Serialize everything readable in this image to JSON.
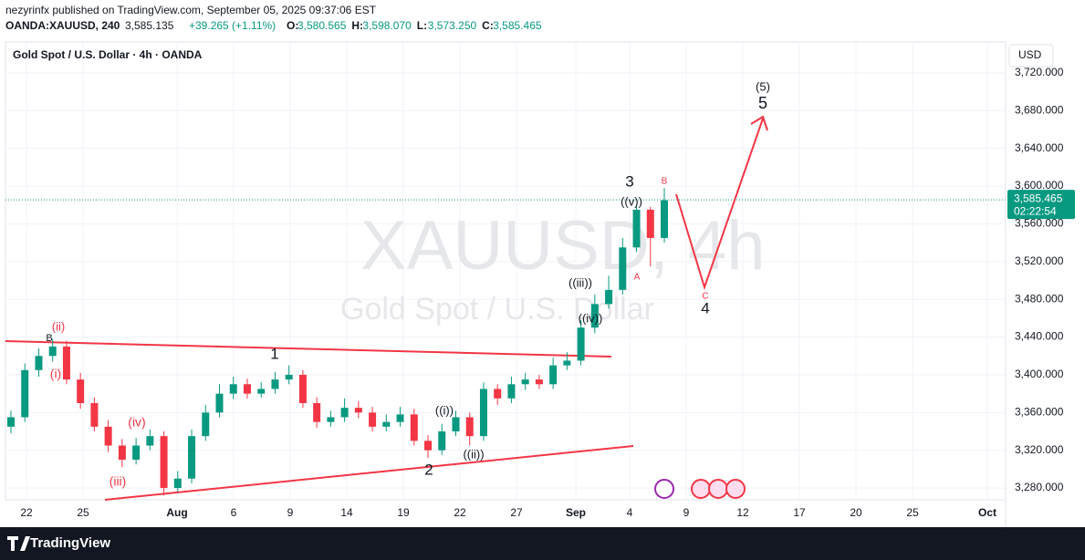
{
  "header": {
    "published": "nezyrinfx published on TradingView.com, September 05, 2025 09:37:06 EST",
    "symbol": "OANDA:XAUUSD, 240",
    "price": "3,585.135",
    "change": "+39.265 (+1.11%)",
    "ohlc": [
      {
        "label": "O:",
        "value": "3,580.565"
      },
      {
        "label": "H:",
        "value": "3,598.070"
      },
      {
        "label": "L:",
        "value": "3,573.250"
      },
      {
        "label": "C:",
        "value": "3,585.465"
      }
    ]
  },
  "chart_data": {
    "type": "candlestick",
    "title": "Gold Spot / U.S. Dollar · 4h · OANDA",
    "watermark": "XAUUSD, 4h",
    "watermark_sub": "Gold Spot / U.S. Dollar",
    "currency": "USD",
    "x_labels": [
      "22",
      "25",
      "Aug",
      "6",
      "9",
      "14",
      "19",
      "22",
      "27",
      "Sep",
      "4",
      "9",
      "12",
      "17",
      "20",
      "25",
      "Oct"
    ],
    "open": [
      3345,
      3355,
      3405,
      3420,
      3430,
      3395,
      3370,
      3345,
      3325,
      3310,
      3325,
      3335,
      3280,
      3290,
      3335,
      3360,
      3380,
      3390,
      3380,
      3385,
      3395,
      3400,
      3370,
      3350,
      3355,
      3365,
      3360,
      3345,
      3350,
      3358,
      3330,
      3320,
      3340,
      3355,
      3335,
      3385,
      3375,
      3390,
      3395,
      3390,
      3410,
      3415,
      3450,
      3475,
      3490,
      3535,
      3575,
      3545
    ],
    "high": [
      3362,
      3412,
      3428,
      3438,
      3436,
      3402,
      3376,
      3352,
      3332,
      3333,
      3342,
      3340,
      3298,
      3342,
      3368,
      3390,
      3398,
      3396,
      3392,
      3403,
      3410,
      3405,
      3376,
      3362,
      3375,
      3372,
      3366,
      3358,
      3366,
      3364,
      3336,
      3348,
      3362,
      3360,
      3392,
      3390,
      3398,
      3402,
      3400,
      3418,
      3424,
      3458,
      3485,
      3505,
      3545,
      3580,
      3578,
      3598
    ],
    "low": [
      3338,
      3350,
      3398,
      3414,
      3390,
      3364,
      3340,
      3318,
      3302,
      3305,
      3320,
      3272,
      3276,
      3285,
      3330,
      3355,
      3374,
      3375,
      3376,
      3380,
      3390,
      3365,
      3344,
      3345,
      3350,
      3354,
      3340,
      3340,
      3345,
      3325,
      3312,
      3315,
      3335,
      3325,
      3330,
      3368,
      3370,
      3384,
      3385,
      3385,
      3405,
      3410,
      3444,
      3470,
      3485,
      3530,
      3515,
      3540
    ],
    "close": [
      3355,
      3405,
      3420,
      3430,
      3395,
      3370,
      3345,
      3325,
      3310,
      3325,
      3335,
      3280,
      3290,
      3335,
      3360,
      3380,
      3390,
      3380,
      3385,
      3395,
      3400,
      3370,
      3350,
      3355,
      3365,
      3360,
      3345,
      3350,
      3358,
      3330,
      3320,
      3340,
      3355,
      3335,
      3385,
      3375,
      3390,
      3395,
      3390,
      3410,
      3415,
      3450,
      3475,
      3490,
      3535,
      3575,
      3545,
      3585
    ],
    "up_color": "#089981",
    "down_color": "#f23645",
    "ylim": [
      3267.5,
      3752.8
    ],
    "yticks": [
      {
        "value": 3280,
        "label": "3,280.000"
      },
      {
        "value": 3320,
        "label": "3,320.000"
      },
      {
        "value": 3360,
        "label": "3,360.000"
      },
      {
        "value": 3400,
        "label": "3,400.000"
      },
      {
        "value": 3440,
        "label": "3,440.000"
      },
      {
        "value": 3480,
        "label": "3,480.000"
      },
      {
        "value": 3520,
        "label": "3,520.000"
      },
      {
        "value": 3560,
        "label": "3,560.000"
      },
      {
        "value": 3600,
        "label": "3,600.000"
      },
      {
        "value": 3640,
        "label": "3,640.000"
      },
      {
        "value": 3680,
        "label": "3,680.000"
      },
      {
        "value": 3720,
        "label": "3,720.000"
      }
    ],
    "last_price": {
      "value": 3585.465,
      "label": "3,585.465"
    },
    "countdown": "02:22:54",
    "grid": true,
    "annotations": [
      {
        "text": "(ii)",
        "color": "#f23645"
      },
      {
        "text": "B",
        "color": "#131722"
      },
      {
        "text": "(i)",
        "color": "#f23645"
      },
      {
        "text": "(iv)",
        "color": "#f23645"
      },
      {
        "text": "(iii)",
        "color": "#f23645"
      },
      {
        "text": "1",
        "color": "#131722"
      },
      {
        "text": "((i))",
        "color": "#131722"
      },
      {
        "text": "((ii))",
        "color": "#131722"
      },
      {
        "text": "2",
        "color": "#131722"
      },
      {
        "text": "((iii))",
        "color": "#131722"
      },
      {
        "text": "((iv))",
        "color": "#131722"
      },
      {
        "text": "3",
        "color": "#131722"
      },
      {
        "text": "((v))",
        "color": "#131722"
      },
      {
        "text": "B",
        "color": "#f23645"
      },
      {
        "text": "A",
        "color": "#f23645"
      },
      {
        "text": "C",
        "color": "#f23645"
      },
      {
        "text": "4",
        "color": "#131722"
      },
      {
        "text": "(5)",
        "color": "#131722"
      },
      {
        "text": "5",
        "color": "#131722"
      }
    ]
  },
  "footer": {
    "brand": "TradingView"
  }
}
